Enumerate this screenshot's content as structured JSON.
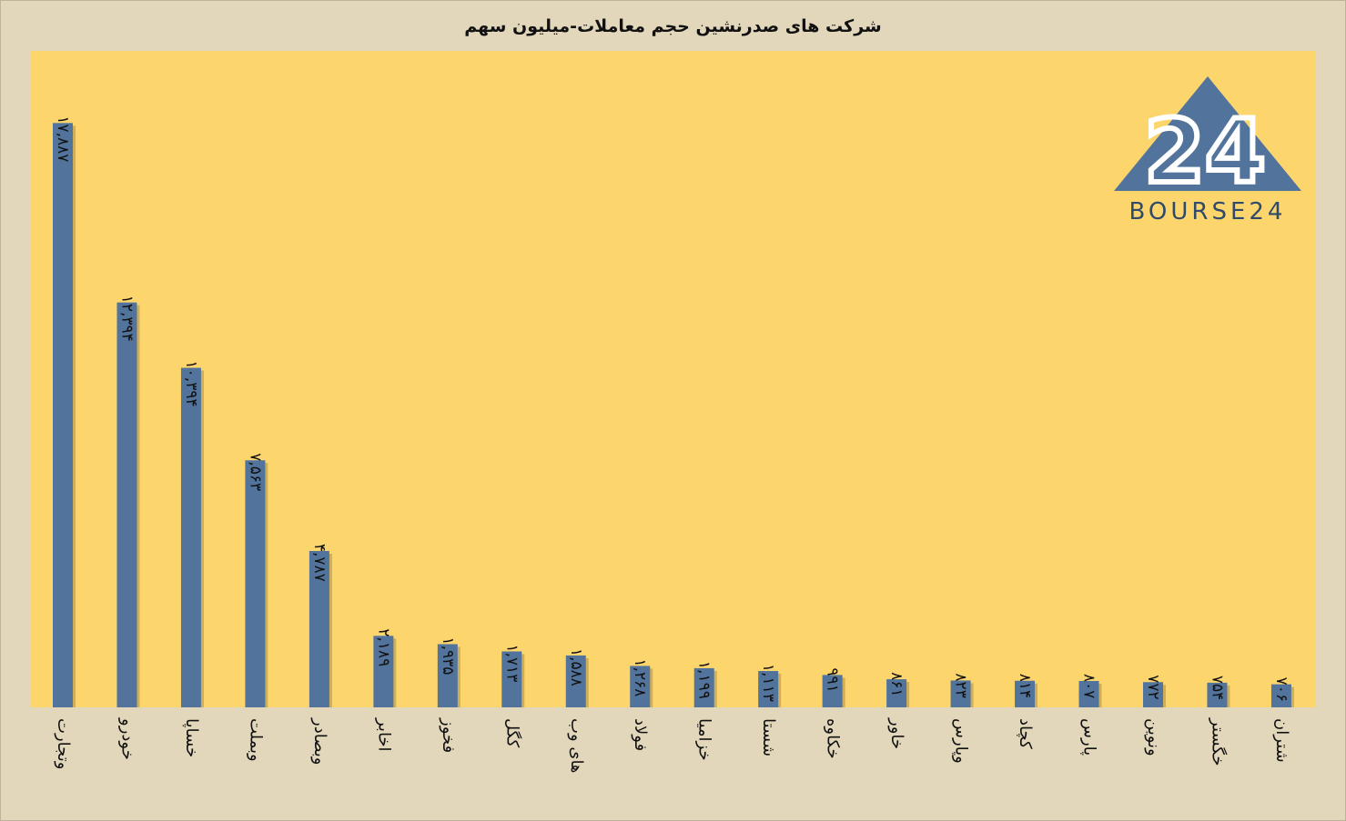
{
  "chart_data": {
    "type": "bar",
    "title": "شرکت های صدرنشین حجم معاملات-میلیون سهم",
    "xlabel": "",
    "ylabel": "",
    "grid": false,
    "categories": [
      "وتجارت",
      "خودرو",
      "خساپا",
      "وبملت",
      "وبصادر",
      "اخابر",
      "فخوز",
      "کگل",
      "های وب",
      "فولاد",
      "خزامیا",
      "شستا",
      "خکاوه",
      "خاور",
      "وپارس",
      "کچاد",
      "پارس",
      "ونوین",
      "خگستر",
      "شتران"
    ],
    "values": [
      17887,
      12394,
      10394,
      7563,
      4787,
      2189,
      1935,
      1713,
      1588,
      1268,
      1199,
      1113,
      991,
      861,
      823,
      814,
      807,
      772,
      754,
      706
    ],
    "value_labels": [
      "۱۷,۸۸۷",
      "۱۲,۳۹۴",
      "۱۰,۳۹۴",
      "۷,۵۶۳",
      "۴,۷۸۷",
      "۲,۱۸۹",
      "۱,۹۳۵",
      "۱,۷۱۳",
      "۱,۵۸۸",
      "۱,۲۶۸",
      "۱,۱۹۹",
      "۱,۱۱۳",
      "۹۹۱",
      "۸۶۱",
      "۸۲۳",
      "۸۱۴",
      "۸۰۷",
      "۷۷۲",
      "۷۵۴",
      "۷۰۶"
    ],
    "ylim": [
      0,
      20000
    ],
    "colors": {
      "bar": "#52749c",
      "plot_background": "#fdd56d",
      "page_background": "#e2d7bb"
    }
  },
  "logo": {
    "text": "BOURSE24",
    "number": "24",
    "color": "#52749c"
  }
}
